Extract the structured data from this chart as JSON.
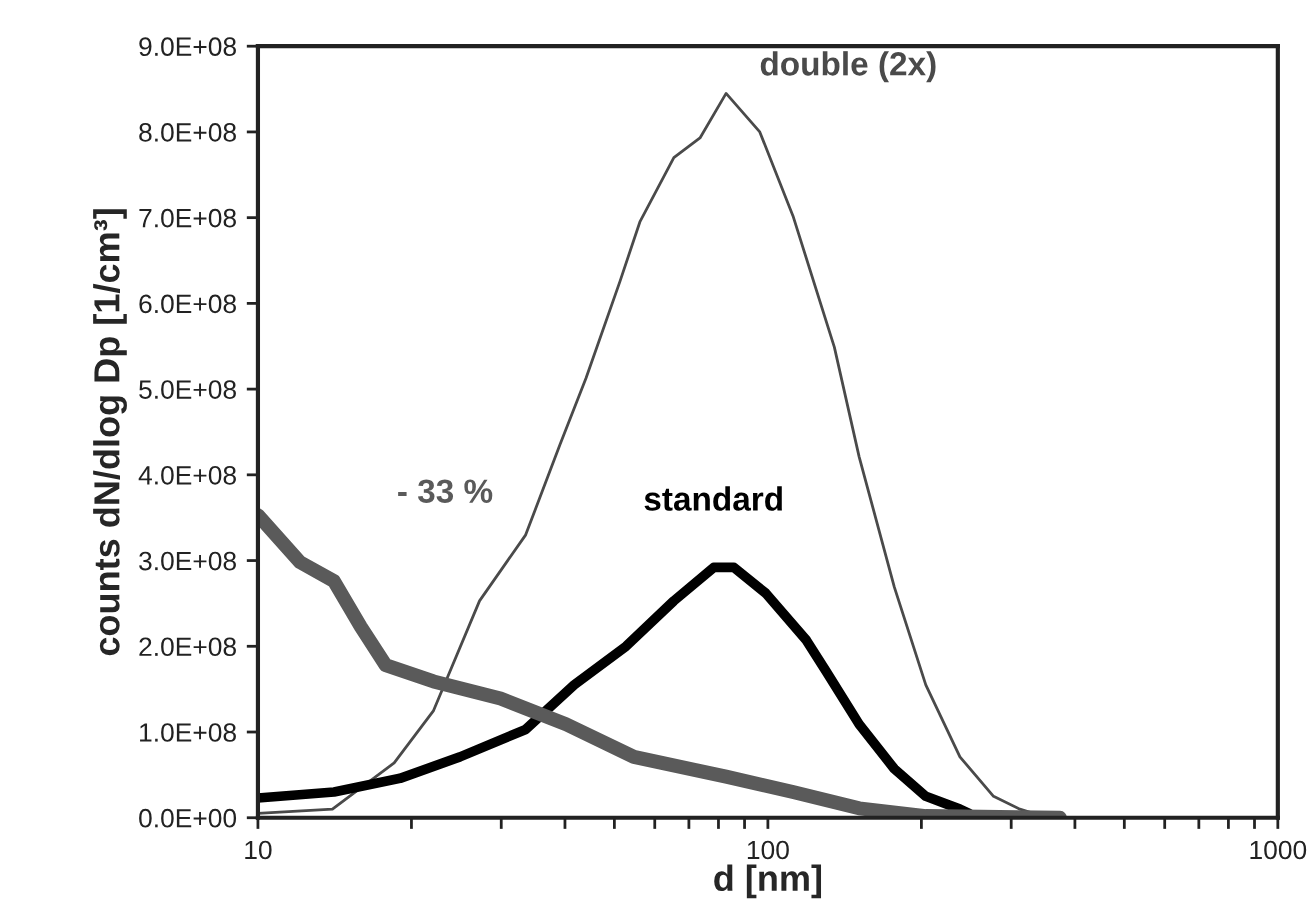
{
  "chart_data": {
    "type": "line",
    "xlabel": "d [nm]",
    "ylabel": "counts dN/dlog Dp [1/cm³]",
    "log": "x",
    "grid": false,
    "legend": false,
    "line_style": "solid",
    "marker": "none",
    "xlim": [
      10,
      1000
    ],
    "xticks": [
      10,
      {
        "value": 20,
        "label": null
      },
      {
        "value": 30,
        "label": null
      },
      {
        "value": 40,
        "label": null
      },
      {
        "value": 50,
        "label": null
      },
      {
        "value": 60,
        "label": null
      },
      {
        "value": 70,
        "label": null
      },
      {
        "value": 80,
        "label": null
      },
      {
        "value": 90,
        "label": null
      },
      100,
      {
        "value": 200,
        "label": null
      },
      {
        "value": 300,
        "label": null
      },
      {
        "value": 400,
        "label": null
      },
      {
        "value": 500,
        "label": null
      },
      {
        "value": 600,
        "label": null
      },
      {
        "value": 700,
        "label": null
      },
      {
        "value": 800,
        "label": null
      },
      {
        "value": 900,
        "label": null
      },
      1000
    ],
    "ylim": [
      0,
      900000000
    ],
    "yticks": [
      {
        "value": 0,
        "label": "0.0E+00"
      },
      {
        "value": 100000000,
        "label": "1.0E+08"
      },
      {
        "value": 200000000,
        "label": "2.0E+08"
      },
      {
        "value": 300000000,
        "label": "3.0E+08"
      },
      {
        "value": 400000000,
        "label": "4.0E+08"
      },
      {
        "value": 500000000,
        "label": "5.0E+08"
      },
      {
        "value": 600000000,
        "label": "6.0E+08"
      },
      {
        "value": 700000000,
        "label": "7.0E+08"
      },
      {
        "value": 800000000,
        "label": "8.0E+08"
      },
      {
        "value": 900000000,
        "label": "9.0E+08"
      }
    ],
    "series": [
      {
        "name": "double (2x)",
        "color": "#4a4a4a",
        "x": [
          10,
          14,
          18.5,
          22.1,
          27.2,
          33.5,
          39.1,
          44,
          51.3,
          56.1,
          65.4,
          73.6,
          82.8,
          96.4,
          112,
          135,
          151,
          177,
          204,
          238,
          277,
          312,
          340
        ],
        "values": [
          5000000,
          10000000,
          64000000,
          125000000,
          253000000,
          330000000,
          435000000,
          513000000,
          626000000,
          695000000,
          770000000,
          793000000,
          845000000,
          800000000,
          702000000,
          549000000,
          421000000,
          269000000,
          155000000,
          71000000,
          25000000,
          10000000,
          3000000
        ]
      },
      {
        "name": "standard",
        "color": "#000000",
        "x": [
          10,
          14.1,
          19,
          24.9,
          33.5,
          41.7,
          52.7,
          65.4,
          78.3,
          85.8,
          99,
          119,
          130,
          151,
          177,
          204,
          238,
          248
        ],
        "values": [
          23000000,
          30000000,
          46000000,
          71000000,
          103000000,
          155000000,
          200000000,
          253000000,
          292000000,
          292000000,
          262000000,
          207000000,
          171000000,
          109000000,
          57000000,
          25000000,
          10000000,
          5000000
        ]
      },
      {
        "name": "- 33 %",
        "color": "#5a5a5a",
        "x": [
          10,
          12.1,
          14.1,
          15.9,
          17.8,
          22.1,
          29.9,
          40.2,
          54.6,
          82.8,
          112,
          151,
          204,
          374
        ],
        "values": [
          353000000,
          298000000,
          276000000,
          223000000,
          178000000,
          159000000,
          139000000,
          109000000,
          71000000,
          48000000,
          30000000,
          11000000,
          2000000,
          0
        ]
      }
    ]
  }
}
